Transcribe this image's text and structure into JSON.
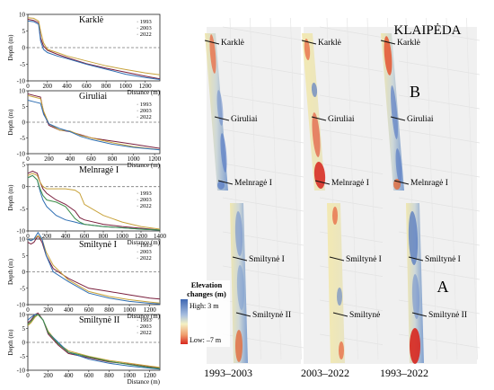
{
  "colors": {
    "y1993": "#7a1f3d",
    "y2003": "#c8a23a",
    "y2022": "#2f6fb3",
    "extra": "#3f8f4a",
    "zero_line": "#7a7a7a",
    "high": "#3f67b3",
    "mid": "#f4f1c4",
    "low": "#d7261e"
  },
  "chart_data": [
    {
      "type": "line",
      "title": "Karklė",
      "xlabel": "Distance (m)",
      "ylabel": "Depth (m)",
      "xlim": [
        0,
        1350
      ],
      "ylim": [
        -10,
        10
      ],
      "xticks": [
        0,
        200,
        400,
        600,
        800,
        1000,
        1200
      ],
      "yticks": [
        -10,
        -5,
        0,
        5,
        10
      ],
      "legend": [
        "1993",
        "2003",
        "2022"
      ],
      "series": [
        {
          "name": "1993",
          "x": [
            0,
            60,
            110,
            130,
            160,
            200,
            300,
            400,
            600,
            800,
            1000,
            1200,
            1350
          ],
          "y": [
            8.5,
            8.2,
            7.5,
            3,
            0.5,
            -0.8,
            -2,
            -3,
            -4.8,
            -6.2,
            -7.4,
            -8.6,
            -9.4
          ]
        },
        {
          "name": "2003",
          "x": [
            0,
            60,
            110,
            130,
            160,
            200,
            300,
            400,
            600,
            800,
            1000,
            1200,
            1350
          ],
          "y": [
            9,
            8.8,
            8,
            5,
            1.5,
            -0.5,
            -1.5,
            -2.5,
            -4,
            -5.5,
            -6.6,
            -7.6,
            -8.2
          ]
        },
        {
          "name": "2022",
          "x": [
            0,
            60,
            110,
            130,
            160,
            200,
            300,
            400,
            600,
            800,
            1000,
            1200,
            1350
          ],
          "y": [
            8,
            7.8,
            7,
            2,
            -0.5,
            -1.5,
            -2.5,
            -3.3,
            -5,
            -6.5,
            -8,
            -9,
            -9.6
          ]
        }
      ]
    },
    {
      "type": "line",
      "title": "Giruliai",
      "xlabel": "Distance (m)",
      "ylabel": "Depth (m)",
      "xlim": [
        0,
        1250
      ],
      "ylim": [
        -10,
        10
      ],
      "xticks": [
        0,
        200,
        400,
        600,
        800,
        1000,
        1200
      ],
      "yticks": [
        -10,
        -5,
        0,
        5,
        10
      ],
      "legend": [
        "1993",
        "2003",
        "2022"
      ],
      "series": [
        {
          "name": "1993",
          "x": [
            0,
            60,
            120,
            150,
            200,
            300,
            400,
            500,
            600,
            800,
            1000,
            1250
          ],
          "y": [
            9,
            8.5,
            8,
            3,
            -1,
            -2.5,
            -3,
            -4,
            -5,
            -6,
            -7,
            -8.3
          ]
        },
        {
          "name": "2003",
          "x": [
            0,
            60,
            120,
            150,
            200,
            300,
            400,
            500,
            600,
            800,
            1000,
            1250
          ],
          "y": [
            8.5,
            8,
            7.5,
            3.5,
            -0.5,
            -2.5,
            -2.8,
            -4.2,
            -5,
            -6.5,
            -7.8,
            -8.8
          ]
        },
        {
          "name": "2022",
          "x": [
            0,
            60,
            120,
            150,
            200,
            300,
            400,
            500,
            600,
            800,
            1000,
            1250
          ],
          "y": [
            7,
            6.5,
            6,
            2.5,
            -0.5,
            -2,
            -3,
            -4.5,
            -5.5,
            -7,
            -8,
            -8.8
          ]
        }
      ]
    },
    {
      "type": "line",
      "title": "Melnragė I",
      "xlabel": "Distance (m)",
      "ylabel": "Depth (m)",
      "xlim": [
        0,
        1400
      ],
      "ylim": [
        -10,
        5
      ],
      "xticks": [
        0,
        200,
        400,
        600,
        800,
        1000,
        1200,
        1400
      ],
      "yticks": [
        -10,
        -5,
        0,
        5
      ],
      "legend": [
        "1993",
        "2003",
        "2022"
      ],
      "series": [
        {
          "name": "1993",
          "x": [
            0,
            50,
            100,
            130,
            160,
            200,
            300,
            400,
            500,
            550,
            600,
            800,
            1000,
            1200,
            1400
          ],
          "y": [
            3,
            3.5,
            3,
            1,
            -0.5,
            -1.5,
            -3,
            -4,
            -5.5,
            -7,
            -7.5,
            -8.5,
            -9,
            -9.4,
            -9.8
          ]
        },
        {
          "name": "2003",
          "x": [
            0,
            50,
            100,
            130,
            160,
            200,
            300,
            400,
            500,
            550,
            600,
            800,
            1000,
            1200,
            1400
          ],
          "y": [
            2.5,
            3,
            2.5,
            1,
            0,
            -0.5,
            -0.5,
            -0.5,
            -0.8,
            -1.5,
            -4,
            -6.5,
            -8,
            -9,
            -9.6
          ]
        },
        {
          "name": "2022",
          "x": [
            0,
            50,
            100,
            130,
            160,
            200,
            300,
            400,
            500,
            550,
            600,
            800,
            1000,
            1200,
            1400
          ],
          "y": [
            2,
            2.5,
            1.5,
            -1,
            -3,
            -4.5,
            -6.5,
            -7.5,
            -8,
            -8.3,
            -8.5,
            -9,
            -9.3,
            -9.6,
            -9.8
          ]
        },
        {
          "x": [
            0,
            50,
            100,
            130,
            160,
            200,
            300,
            400,
            500,
            550,
            600,
            800,
            1000,
            1200,
            1400
          ],
          "y": [
            2,
            2.5,
            1.5,
            -0.5,
            -2,
            -3,
            -3.5,
            -4.5,
            -7.2,
            -8,
            -8.5,
            -9,
            -9.3,
            -9.6,
            -9.8
          ]
        }
      ]
    },
    {
      "type": "line",
      "title": "Smiltynė I",
      "xlabel": "Distance (m)",
      "ylabel": "Depth (m)",
      "xlim": [
        0,
        1300
      ],
      "ylim": [
        -10,
        10
      ],
      "xticks": [
        0,
        200,
        400,
        600,
        800,
        1000,
        1200
      ],
      "yticks": [
        -10,
        -5,
        0,
        5,
        10
      ],
      "legend": [
        "1993",
        "2003",
        "2022"
      ],
      "series": [
        {
          "name": "1993",
          "x": [
            0,
            30,
            60,
            100,
            140,
            180,
            250,
            400,
            600,
            800,
            1000,
            1200,
            1300
          ],
          "y": [
            9,
            8.5,
            9,
            11,
            9,
            5,
            1,
            -2,
            -5,
            -6,
            -7,
            -8,
            -8.3
          ]
        },
        {
          "name": "2003",
          "x": [
            0,
            30,
            60,
            100,
            140,
            180,
            250,
            400,
            600,
            800,
            1000,
            1200,
            1300
          ],
          "y": [
            10,
            9.5,
            10,
            11,
            10,
            6,
            2,
            -2.5,
            -6,
            -7.5,
            -8.5,
            -9.2,
            -9.5
          ]
        },
        {
          "name": "2022",
          "x": [
            0,
            30,
            60,
            100,
            140,
            180,
            250,
            400,
            600,
            800,
            1000,
            1200,
            1300
          ],
          "y": [
            10,
            9.5,
            10,
            12,
            10,
            5,
            0,
            -3,
            -6.5,
            -8,
            -9,
            -9.6,
            -9.8
          ]
        }
      ]
    },
    {
      "type": "line",
      "title": "Smiltynė II",
      "xlabel": "Distance (m)",
      "ylabel": "Depth (m)",
      "xlim": [
        0,
        1300
      ],
      "ylim": [
        -10,
        10
      ],
      "xticks": [
        0,
        200,
        400,
        600,
        800,
        1000,
        1200
      ],
      "yticks": [
        -10,
        -5,
        0,
        5,
        10
      ],
      "legend": [
        "1993",
        "2003",
        "2022"
      ],
      "series": [
        {
          "name": "1993",
          "x": [
            0,
            30,
            70,
            100,
            150,
            200,
            300,
            400,
            600,
            800,
            1000,
            1200,
            1300
          ],
          "y": [
            7,
            8,
            10,
            10.5,
            8,
            3,
            -1,
            -4,
            -5.5,
            -7,
            -7.8,
            -8.8,
            -9.2
          ]
        },
        {
          "name": "2003",
          "x": [
            0,
            30,
            70,
            100,
            150,
            200,
            300,
            400,
            600,
            800,
            1000,
            1200,
            1300
          ],
          "y": [
            6,
            7,
            9,
            10,
            8,
            4,
            -0.5,
            -3,
            -5,
            -6.5,
            -7.5,
            -8.5,
            -9
          ]
        },
        {
          "name": "2022",
          "x": [
            0,
            30,
            70,
            100,
            150,
            200,
            300,
            400,
            600,
            800,
            1000,
            1200,
            1300
          ],
          "y": [
            8,
            9,
            10,
            10,
            8,
            3.5,
            0,
            -3.5,
            -6,
            -7.5,
            -8.5,
            -9.3,
            -9.6
          ]
        },
        {
          "x": [
            0,
            30,
            70,
            100,
            150,
            200,
            300,
            400,
            600,
            800,
            1000,
            1200,
            1300
          ],
          "y": [
            6.5,
            7.5,
            9.5,
            10,
            8,
            3.5,
            -0.5,
            -3.5,
            -5.2,
            -6.8,
            -8,
            -9,
            -9.4
          ]
        }
      ]
    }
  ],
  "map": {
    "city": "KLAIPĖDA",
    "zone_b": "B",
    "zone_a": "A",
    "sites": [
      "Karklė",
      "Giruliai",
      "Melnragė I",
      "Smiltynė I",
      "Smiltynė II"
    ],
    "periods": [
      "1993–2003",
      "2003–2022",
      "1993–2022"
    ],
    "legend_title_1": "Elevation",
    "legend_title_2": "changes (m)",
    "legend_high": "High: 3 m",
    "legend_low": "Low: –7 m"
  }
}
